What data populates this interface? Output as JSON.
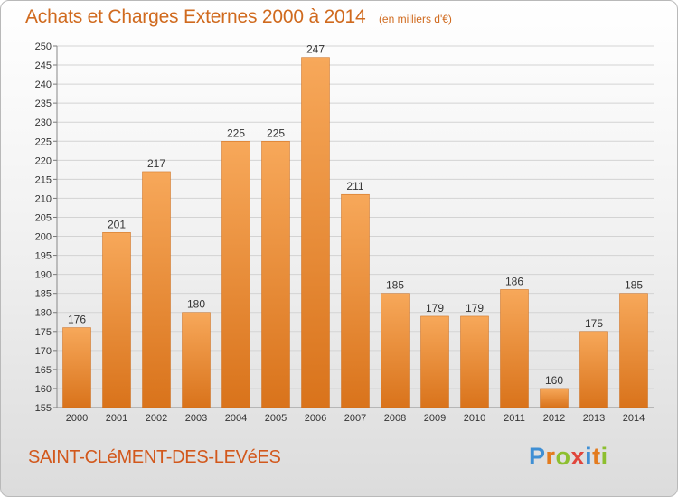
{
  "chart_title": "Achats et Charges Externes 2000 à 2014",
  "chart_subtitle": "(en milliers d'€)",
  "commune_name": "SAINT-CLéMENT-DES-LEVéES",
  "logo": {
    "text": "Proxiti",
    "letters": [
      "P",
      "r",
      "o",
      "x",
      "i",
      "t",
      "i"
    ],
    "colors": [
      "#3f8fd4",
      "#e37b1e",
      "#8dbf2f",
      "#e0463c",
      "#3f8fd4",
      "#e37b1e",
      "#8dbf2f"
    ]
  },
  "colors": {
    "bar_light": "#f7a85a",
    "bar_dark": "#d9731b",
    "title": "#d06a1e",
    "grid": "#d3d3d3"
  },
  "chart_data": {
    "type": "bar",
    "title": "Achats et Charges Externes 2000 à 2014",
    "subtitle": "(en milliers d'€)",
    "categories": [
      "2000",
      "2001",
      "2002",
      "2003",
      "2004",
      "2005",
      "2006",
      "2007",
      "2008",
      "2009",
      "2010",
      "2011",
      "2012",
      "2013",
      "2014"
    ],
    "values": [
      176,
      201,
      217,
      180,
      225,
      225,
      247,
      211,
      185,
      179,
      179,
      186,
      160,
      175,
      185
    ],
    "ylim": [
      155,
      250
    ],
    "yticks": [
      155,
      160,
      165,
      170,
      175,
      180,
      185,
      190,
      195,
      200,
      205,
      210,
      215,
      220,
      225,
      230,
      235,
      240,
      245,
      250
    ],
    "xlabel": "",
    "ylabel": "",
    "grid": true,
    "legend": "none"
  }
}
